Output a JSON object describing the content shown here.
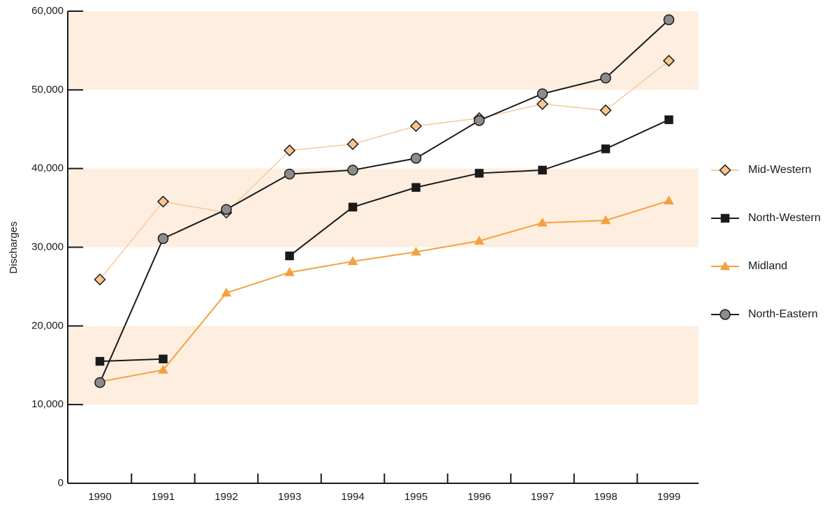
{
  "chart_data": {
    "type": "line",
    "title": "",
    "xlabel": "",
    "ylabel": "Discharges",
    "ylim": [
      0,
      60000
    ],
    "y_ticks": [
      0,
      10000,
      20000,
      30000,
      40000,
      50000,
      60000
    ],
    "y_tick_labels": [
      "0",
      "10,000",
      "20,000",
      "30,000",
      "40,000",
      "50,000",
      "60,000"
    ],
    "categories": [
      "1990",
      "1991",
      "1992",
      "1993",
      "1994",
      "1995",
      "1996",
      "1997",
      "1998",
      "1999"
    ],
    "background_bands": [
      [
        10000,
        20000
      ],
      [
        30000,
        40000
      ],
      [
        50000,
        60000
      ]
    ],
    "band_color": "#fdeee0",
    "grid": false,
    "legend_position": "right",
    "series": [
      {
        "name": "Mid-Western",
        "marker": "diamond",
        "line_color": "#f7c99a",
        "marker_fill": "#f9c48e",
        "marker_stroke": "#1a1a1a",
        "values": [
          25900,
          35800,
          34400,
          42300,
          43100,
          45400,
          46400,
          48200,
          47400,
          53700
        ]
      },
      {
        "name": "North-Western",
        "marker": "square",
        "line_color": "#1a1a1a",
        "marker_fill": "#1a1a1a",
        "marker_stroke": "#1a1a1a",
        "values": [
          15500,
          15800,
          null,
          28900,
          35100,
          37600,
          39400,
          39800,
          42500,
          46200
        ]
      },
      {
        "name": "Midland",
        "marker": "triangle",
        "line_color": "#f3a13f",
        "marker_fill": "#f3a13f",
        "marker_stroke": "#f3a13f",
        "values": [
          12900,
          14400,
          24200,
          26800,
          28200,
          29400,
          30800,
          33100,
          33400,
          35900
        ]
      },
      {
        "name": "North-Eastern",
        "marker": "circle",
        "line_color": "#1a1a1a",
        "marker_fill": "#8c8c8c",
        "marker_stroke": "#1a1a1a",
        "values": [
          12800,
          31100,
          34800,
          39300,
          39800,
          41300,
          46100,
          49500,
          51500,
          58900
        ]
      }
    ]
  }
}
